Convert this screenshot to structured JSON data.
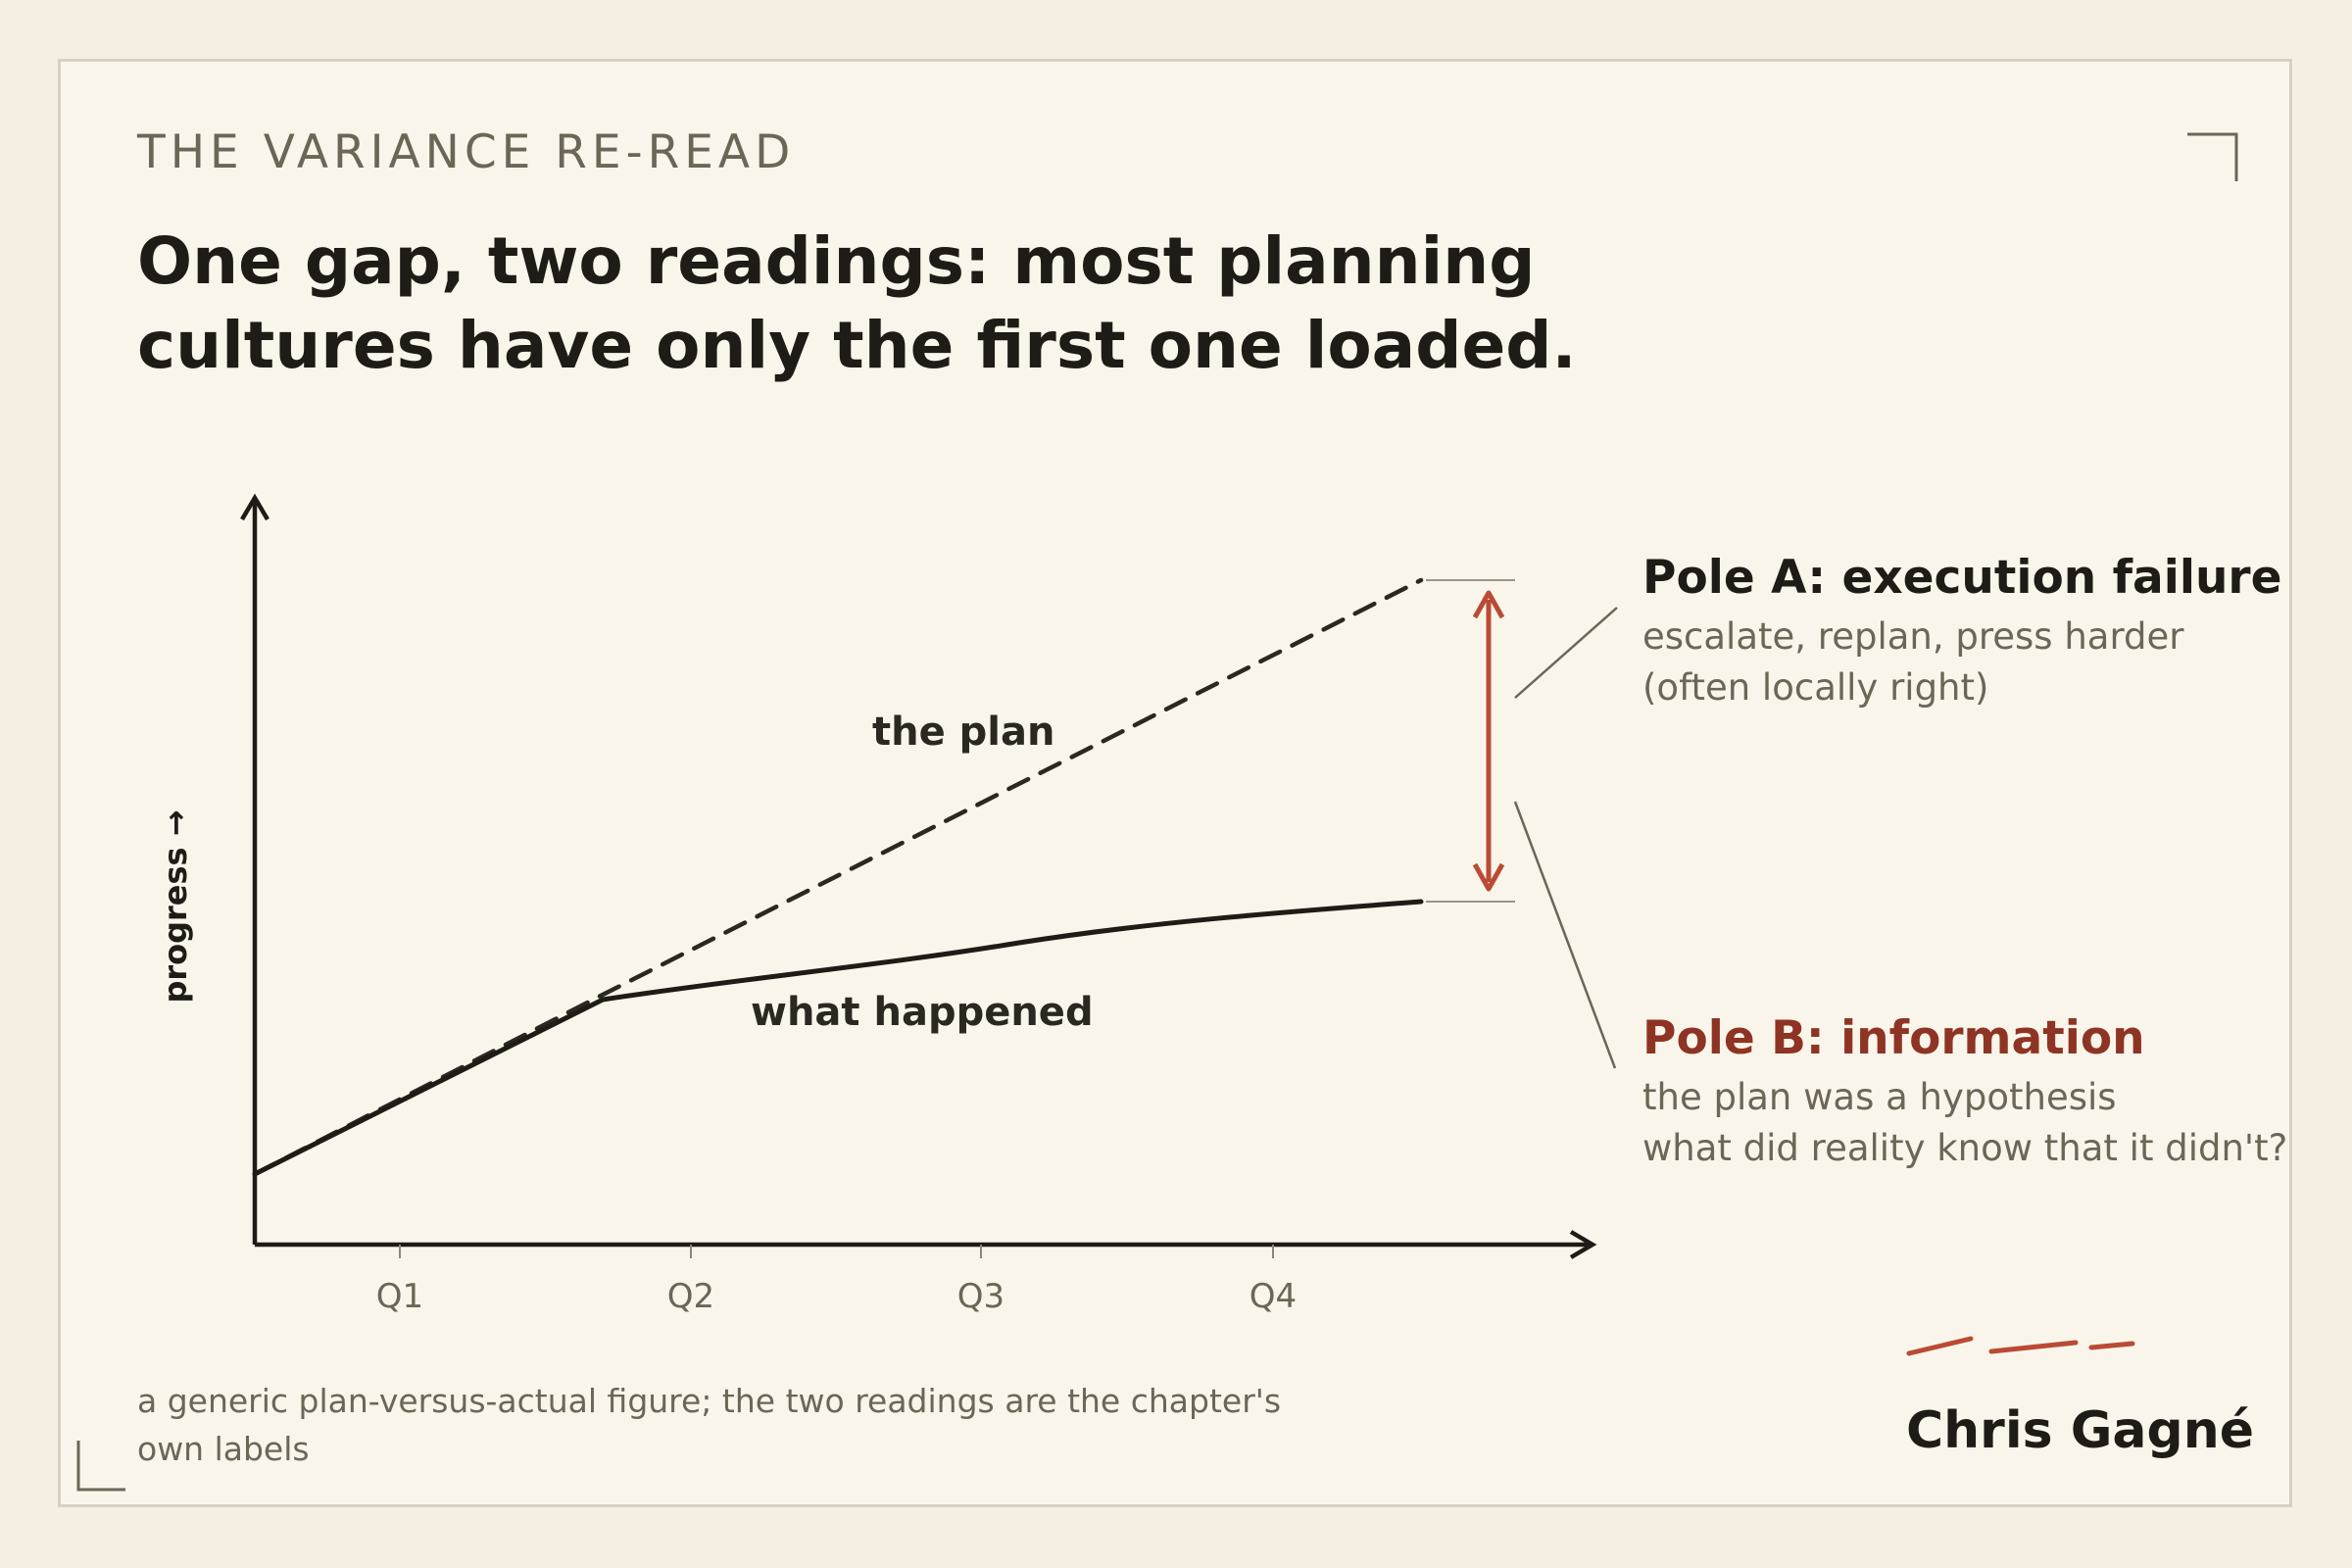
{
  "kicker": "THE VARIANCE RE-READ",
  "headline": {
    "line1": "One gap, two readings: most planning",
    "line2": "cultures have only the first one loaded."
  },
  "diagram": {
    "y_axis_label": "progress →",
    "x_ticks": [
      "Q1",
      "Q2",
      "Q3",
      "Q4"
    ],
    "plan_label": "the plan",
    "actual_label": "what happened"
  },
  "pole_a": {
    "title": "Pole A: execution failure",
    "line1": "escalate, replan, press harder",
    "line2": "(often locally right)"
  },
  "pole_b": {
    "title": "Pole B: information",
    "line1": "the plan was a hypothesis",
    "line2": "what did reality know that it didn't?"
  },
  "caption": "a generic plan-versus-actual figure; the two readings are the chapter's own labels",
  "signature": "Chris Gagné",
  "colors": {
    "accent": "#b94b35",
    "accent_dark": "#8e3424",
    "ink": "#1f1c17",
    "muted": "#6b6656"
  }
}
